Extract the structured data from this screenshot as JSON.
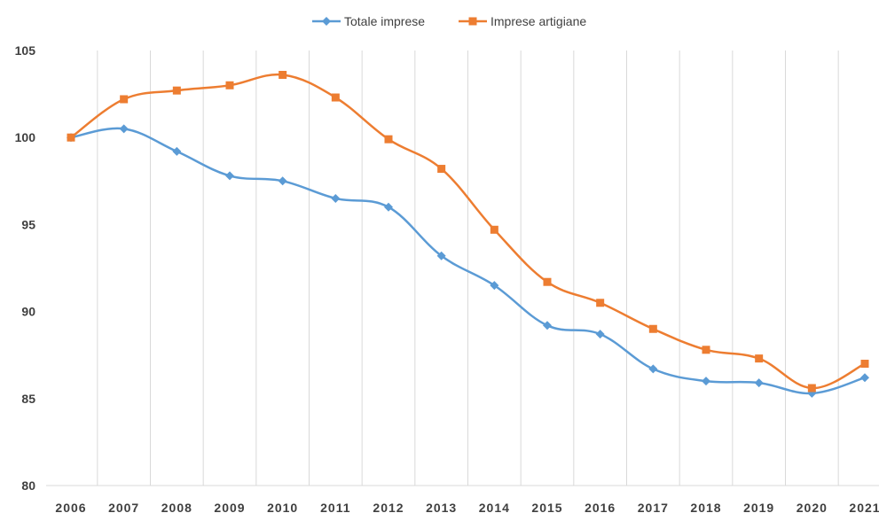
{
  "chart_data": {
    "type": "line",
    "title": "",
    "xlabel": "",
    "ylabel": "",
    "categories": [
      "2006",
      "2007",
      "2008",
      "2009",
      "2010",
      "2011",
      "2012",
      "2013",
      "2014",
      "2015",
      "2016",
      "2017",
      "2018",
      "2019",
      "2020",
      "2021"
    ],
    "ylim": [
      80,
      105
    ],
    "yticks": [
      80,
      85,
      90,
      95,
      100,
      105
    ],
    "grid": "vertical",
    "legend_position": "top-center",
    "series": [
      {
        "name": "Totale imprese",
        "color": "#5B9BD5",
        "marker": "diamond",
        "values": [
          100,
          100.5,
          99.2,
          97.8,
          97.5,
          96.5,
          96.0,
          93.2,
          91.5,
          89.2,
          88.7,
          86.7,
          86.0,
          85.9,
          85.3,
          86.2
        ]
      },
      {
        "name": "Imprese artigiane",
        "color": "#ED7D31",
        "marker": "square",
        "values": [
          100,
          102.2,
          102.7,
          103.0,
          103.6,
          102.3,
          99.9,
          98.2,
          94.7,
          91.7,
          90.5,
          89.0,
          87.8,
          87.3,
          85.6,
          87.0
        ]
      }
    ]
  }
}
